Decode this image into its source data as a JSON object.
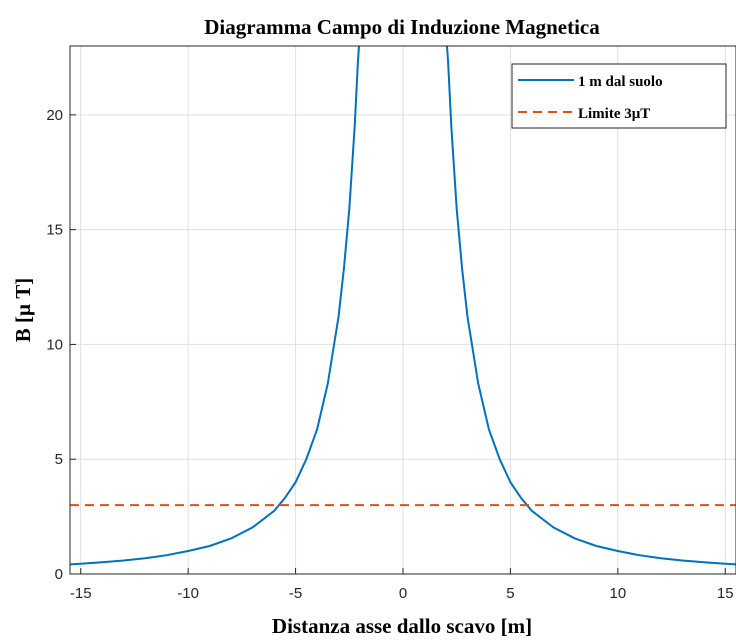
{
  "chart_data": {
    "type": "line",
    "title": "Diagramma Campo di Induzione Magnetica",
    "xlabel": "Distanza asse dallo scavo [m]",
    "ylabel": "B [μ T]",
    "xlim": [
      -15.5,
      15.5
    ],
    "ylim": [
      0,
      23
    ],
    "xticks": [
      -15,
      -10,
      -5,
      0,
      5,
      10,
      15
    ],
    "xtick_labels": [
      "-15",
      "-10",
      "-5",
      "0",
      "5",
      "10",
      "15"
    ],
    "yticks": [
      0,
      5,
      10,
      15,
      20
    ],
    "ytick_labels": [
      "0",
      "5",
      "10",
      "15",
      "20"
    ],
    "grid": true,
    "legend_position": "top-right",
    "series": [
      {
        "name": "1 m dal suolo",
        "style": "solid",
        "color": "#0072BD",
        "x": [
          -15.5,
          -15,
          -14,
          -13,
          -12,
          -11,
          -10,
          -9,
          -8,
          -7,
          -6,
          -5.5,
          -5,
          -4.5,
          -4,
          -3.5,
          -3,
          -2.75,
          -2.5,
          -2.25,
          -2.1,
          -2.05,
          2.05,
          2.1,
          2.25,
          2.5,
          2.75,
          3,
          3.5,
          4,
          4.5,
          5,
          5.5,
          6,
          7,
          8,
          9,
          10,
          11,
          12,
          13,
          14,
          15,
          15.5
        ],
        "y": [
          0.42,
          0.45,
          0.51,
          0.59,
          0.69,
          0.82,
          1.0,
          1.22,
          1.55,
          2.03,
          2.75,
          3.3,
          4.0,
          5.0,
          6.3,
          8.3,
          11.2,
          13.3,
          15.9,
          19.5,
          22.3,
          23.0,
          23.0,
          22.3,
          19.5,
          15.9,
          13.3,
          11.2,
          8.3,
          6.3,
          5.0,
          4.0,
          3.3,
          2.75,
          2.03,
          1.55,
          1.22,
          1.0,
          0.82,
          0.69,
          0.59,
          0.51,
          0.45,
          0.42
        ]
      },
      {
        "name": "Limite 3μT",
        "style": "dashed",
        "color": "#D95319",
        "x": [
          -15.5,
          15.5
        ],
        "y": [
          3,
          3
        ]
      }
    ]
  }
}
